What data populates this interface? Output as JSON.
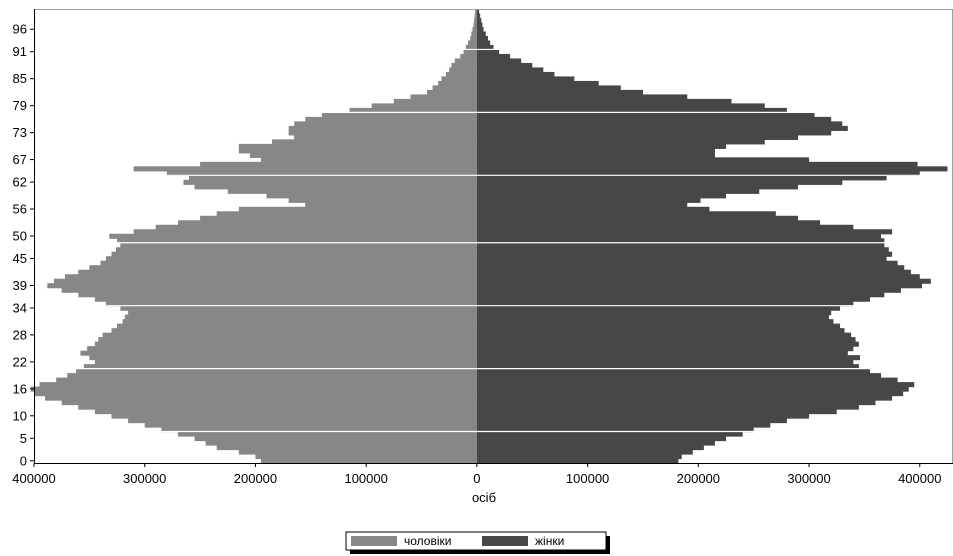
{
  "chart_data": {
    "type": "bar",
    "orientation": "horizontal",
    "subtype": "population-pyramid",
    "xlabel": "осіб",
    "ylabel": "",
    "xlim": [
      -400000,
      430000
    ],
    "ylim": [
      0,
      101
    ],
    "x_ticks": [
      {
        "value": -400000,
        "label": "400000"
      },
      {
        "value": -300000,
        "label": "300000"
      },
      {
        "value": -200000,
        "label": "200000"
      },
      {
        "value": -100000,
        "label": "100000"
      },
      {
        "value": 0,
        "label": "0"
      },
      {
        "value": 100000,
        "label": "100000"
      },
      {
        "value": 200000,
        "label": "200000"
      },
      {
        "value": 300000,
        "label": "300000"
      },
      {
        "value": 400000,
        "label": "400000"
      }
    ],
    "y_tick_labels": [
      "0",
      "5",
      "10",
      "16",
      "22",
      "28",
      "34",
      "39",
      "45",
      "50",
      "56",
      "62",
      "67",
      "73",
      "79",
      "85",
      "91",
      "96"
    ],
    "grid_lines_at_age": [
      7,
      21,
      35,
      49,
      64,
      78,
      92
    ],
    "grid": true,
    "legend_position": "bottom",
    "colors": {
      "male": "#878787",
      "female": "#474747",
      "grid": "#ffffff",
      "axis": "#000000"
    },
    "ages": [
      0,
      1,
      2,
      3,
      4,
      5,
      6,
      7,
      8,
      9,
      10,
      11,
      12,
      13,
      14,
      15,
      16,
      17,
      18,
      19,
      20,
      21,
      22,
      23,
      24,
      25,
      26,
      27,
      28,
      29,
      30,
      31,
      32,
      33,
      34,
      35,
      36,
      37,
      38,
      39,
      40,
      41,
      42,
      43,
      44,
      45,
      46,
      47,
      48,
      49,
      50,
      51,
      52,
      53,
      54,
      55,
      56,
      57,
      58,
      59,
      60,
      61,
      62,
      63,
      64,
      65,
      66,
      67,
      68,
      69,
      70,
      71,
      72,
      73,
      74,
      75,
      76,
      77,
      78,
      79,
      80,
      81,
      82,
      83,
      84,
      85,
      86,
      87,
      88,
      89,
      90,
      91,
      92,
      93,
      94,
      95,
      96,
      97,
      98,
      99,
      100
    ],
    "series": [
      {
        "name": "чоловіки",
        "values": [
          195000,
          200000,
          215000,
          235000,
          245000,
          255000,
          270000,
          285000,
          300000,
          315000,
          330000,
          345000,
          360000,
          375000,
          390000,
          400000,
          403000,
          395000,
          380000,
          370000,
          362000,
          355000,
          345000,
          350000,
          358000,
          352000,
          345000,
          342000,
          338000,
          330000,
          325000,
          320000,
          318000,
          315000,
          322000,
          335000,
          345000,
          360000,
          375000,
          388000,
          382000,
          372000,
          360000,
          350000,
          340000,
          335000,
          330000,
          326000,
          322000,
          325000,
          332000,
          310000,
          290000,
          270000,
          250000,
          235000,
          215000,
          155000,
          170000,
          190000,
          225000,
          255000,
          265000,
          260000,
          280000,
          310000,
          250000,
          195000,
          205000,
          215000,
          215000,
          185000,
          165000,
          170000,
          170000,
          165000,
          155000,
          140000,
          115000,
          95000,
          75000,
          60000,
          45000,
          40000,
          35000,
          32000,
          28000,
          25000,
          23000,
          20000,
          15000,
          12000,
          10000,
          8000,
          6000,
          5000,
          4000,
          3000,
          2500,
          2000,
          1500
        ]
      },
      {
        "name": "жінки",
        "values": [
          182000,
          185000,
          195000,
          205000,
          215000,
          225000,
          240000,
          250000,
          265000,
          280000,
          300000,
          325000,
          345000,
          360000,
          375000,
          385000,
          390000,
          395000,
          380000,
          365000,
          355000,
          345000,
          340000,
          346000,
          335000,
          340000,
          345000,
          342000,
          338000,
          332000,
          328000,
          322000,
          318000,
          320000,
          328000,
          340000,
          355000,
          368000,
          383000,
          402000,
          410000,
          400000,
          392000,
          386000,
          380000,
          370000,
          375000,
          372000,
          368000,
          368000,
          365000,
          375000,
          340000,
          310000,
          290000,
          270000,
          210000,
          190000,
          202000,
          225000,
          255000,
          290000,
          330000,
          370000,
          400000,
          425000,
          398000,
          300000,
          215000,
          215000,
          225000,
          260000,
          290000,
          320000,
          335000,
          330000,
          320000,
          305000,
          280000,
          260000,
          230000,
          190000,
          150000,
          130000,
          110000,
          88000,
          70000,
          60000,
          50000,
          40000,
          30000,
          20000,
          15000,
          12000,
          10000,
          8000,
          6000,
          5000,
          4000,
          3000,
          2000
        ]
      }
    ]
  }
}
